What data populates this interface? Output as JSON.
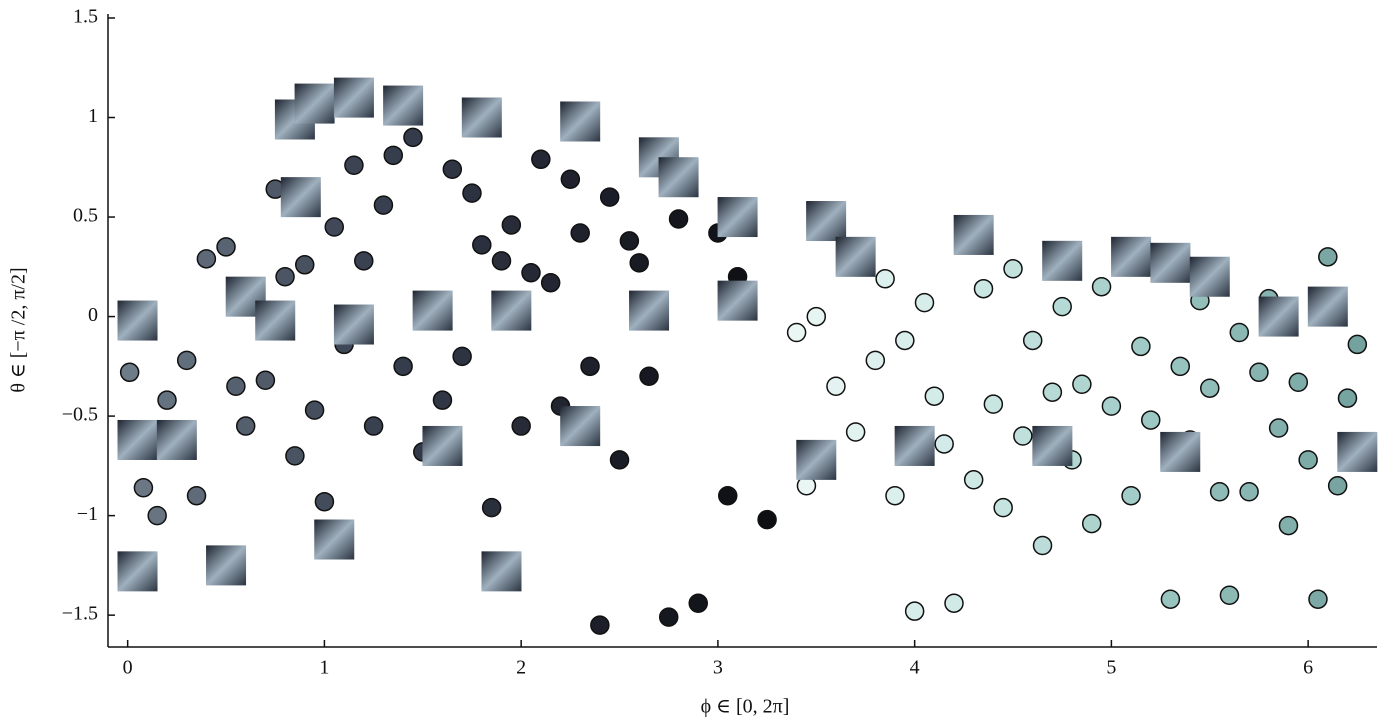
{
  "chart_data": {
    "type": "scatter",
    "x_label": "ϕ ∈ [0, 2π]",
    "y_label": "θ ∈ [−π /2, π/2]",
    "xlim": [
      -0.1,
      6.35
    ],
    "xticks": [
      0,
      1,
      2,
      3,
      4,
      5,
      6
    ],
    "ylim": [
      -1.66,
      1.52
    ],
    "yticks": [
      1.5,
      1,
      0.5,
      0,
      {
        "value": -0.5,
        "label": "−0.5"
      },
      {
        "value": -1,
        "label": "−1"
      },
      {
        "value": -1.5,
        "label": "−1.5"
      }
    ],
    "series": [
      {
        "marker": "circle",
        "x": [
          0.01,
          0.08,
          0.15,
          0.2,
          0.3,
          0.35,
          0.4,
          0.5,
          0.55,
          0.6,
          0.65,
          0.7,
          0.75,
          0.8,
          0.85,
          0.9,
          0.95,
          1.0,
          1.05,
          1.1,
          1.15,
          1.2,
          1.25,
          1.3,
          1.35,
          1.4,
          1.45,
          1.5,
          1.55,
          1.6,
          1.65,
          1.7,
          1.75,
          1.8,
          1.85,
          1.9,
          1.95,
          2.0,
          2.05,
          2.1,
          2.15,
          2.2,
          2.25,
          2.3,
          2.35,
          2.4,
          2.45,
          2.5,
          2.55,
          2.6,
          2.65,
          2.7,
          2.75,
          2.8,
          2.9,
          3.0,
          3.05,
          3.1,
          3.25,
          3.4,
          3.45,
          3.5,
          3.6,
          3.7,
          3.8,
          3.85,
          3.9,
          3.95,
          4.0,
          4.05,
          4.1,
          4.15,
          4.2,
          4.3,
          4.35,
          4.4,
          4.45,
          4.5,
          4.55,
          4.6,
          4.65,
          4.7,
          4.75,
          4.8,
          4.85,
          4.9,
          4.95,
          5.0,
          5.05,
          5.1,
          5.15,
          5.2,
          5.25,
          5.3,
          5.35,
          5.4,
          5.45,
          5.5,
          5.55,
          5.6,
          5.65,
          5.7,
          5.75,
          5.8,
          5.85,
          5.9,
          5.95,
          6.0,
          6.05,
          6.1,
          6.15,
          6.2,
          6.25,
          6.3
        ],
        "values": [
          -0.28,
          -0.86,
          -1.0,
          -0.42,
          -0.22,
          -0.9,
          0.29,
          0.35,
          -0.35,
          -0.55,
          0.12,
          -0.32,
          0.64,
          0.2,
          -0.7,
          0.26,
          -0.47,
          -0.93,
          0.45,
          -0.14,
          0.76,
          0.28,
          -0.55,
          0.56,
          0.81,
          -0.25,
          0.9,
          -0.68,
          0.05,
          -0.42,
          0.74,
          -0.2,
          0.62,
          0.36,
          -0.96,
          0.28,
          0.46,
          -0.55,
          0.22,
          0.79,
          0.17,
          -0.45,
          0.69,
          0.42,
          -0.25,
          -1.55,
          0.6,
          -0.72,
          0.38,
          0.27,
          -0.3,
          0.07,
          -1.51,
          0.49,
          -1.44,
          0.42,
          -0.9,
          0.2,
          -1.02,
          -0.08,
          -0.85,
          0.0,
          -0.35,
          -0.58,
          -0.22,
          0.19,
          -0.9,
          -0.12,
          -1.48,
          0.07,
          -0.4,
          -0.64,
          -1.44,
          -0.82,
          0.14,
          -0.44,
          -0.96,
          0.24,
          -0.6,
          -0.12,
          -1.15,
          -0.38,
          0.05,
          -0.72,
          -0.34,
          -1.04,
          0.15,
          -0.45,
          0.27,
          -0.9,
          -0.15,
          -0.52,
          0.32,
          -1.42,
          -0.25,
          -0.62,
          0.08,
          -0.36,
          -0.88,
          -1.4,
          -0.08,
          -0.88,
          -0.28,
          0.09,
          -0.56,
          -1.05,
          -0.33,
          -0.72,
          -1.42,
          0.3,
          -0.85,
          -0.41,
          -0.14,
          -0.67
        ]
      },
      {
        "marker": "image",
        "x": [
          0.05,
          0.05,
          0.25,
          0.5,
          0.6,
          0.75,
          0.85,
          0.88,
          0.95,
          1.05,
          1.15,
          1.4,
          1.8,
          2.3,
          2.7,
          2.8,
          3.1,
          3.1,
          3.55,
          3.7,
          4.3,
          4.75,
          5.1,
          5.3,
          5.5,
          5.85,
          6.1,
          1.15,
          1.55,
          1.95,
          2.3,
          2.65,
          0.05,
          1.6,
          4.0,
          4.7,
          5.35,
          6.25,
          3.5,
          1.9
        ],
        "values": [
          -1.28,
          -0.62,
          -0.62,
          -1.25,
          0.1,
          -0.02,
          0.99,
          0.6,
          1.07,
          -1.12,
          1.1,
          1.06,
          1.0,
          0.98,
          0.8,
          0.7,
          0.5,
          0.08,
          0.48,
          0.3,
          0.41,
          0.28,
          0.3,
          0.27,
          0.2,
          0.0,
          0.05,
          -0.04,
          0.03,
          0.03,
          -0.55,
          0.03,
          -0.02,
          -0.65,
          -0.65,
          -0.65,
          -0.68,
          -0.68,
          -0.72,
          -1.28
        ]
      }
    ]
  }
}
